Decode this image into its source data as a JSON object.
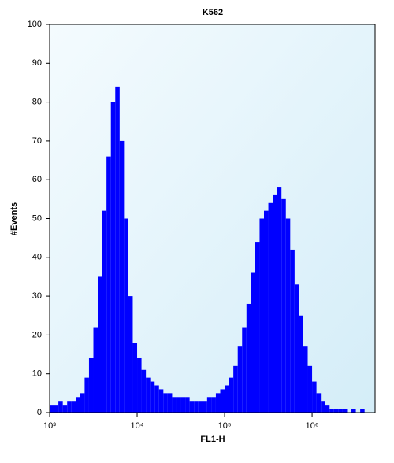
{
  "chart_data": {
    "type": "histogram",
    "title": "K562",
    "x_label": "FL1-H",
    "y_label": "#Events",
    "color": "#0000ff",
    "x_log": true,
    "xlim": [
      1000,
      5248000
    ],
    "xticks": [
      {
        "value": 1000,
        "label": "10³"
      },
      {
        "value": 10000,
        "label": "10⁴"
      },
      {
        "value": 100000,
        "label": "10⁵"
      },
      {
        "value": 1000000,
        "label": "10⁶"
      }
    ],
    "ylim": [
      0,
      100
    ],
    "yticks": [
      0,
      10,
      20,
      30,
      40,
      50,
      60,
      70,
      80,
      90,
      100
    ],
    "bins": [
      1000,
      1122,
      1259,
      1413,
      1585,
      1778,
      1995,
      2239,
      2512,
      2818,
      3162,
      3548,
      3981,
      4467,
      5012,
      5623,
      6310,
      7079,
      7943,
      8913,
      10000,
      11220,
      12590,
      14130,
      15850,
      17780,
      19950,
      22390,
      25120,
      28180,
      31620,
      35480,
      39810,
      44670,
      50120,
      56230,
      63100,
      70790,
      79430,
      89130,
      100000,
      112200,
      125900,
      141300,
      158500,
      177800,
      199500,
      223900,
      251200,
      281800,
      316200,
      354800,
      398100,
      446700,
      501200,
      562300,
      631000,
      707900,
      794300,
      891300,
      1000000,
      1122000,
      1259000,
      1413000,
      1585000,
      1778000,
      1995000,
      2239000,
      2512000,
      2818000,
      3162000,
      3548000,
      3981000,
      4467000,
      5012000
    ],
    "values": [
      2,
      2,
      3,
      2,
      3,
      3,
      4,
      5,
      9,
      14,
      22,
      35,
      52,
      66,
      80,
      84,
      70,
      50,
      30,
      18,
      14,
      11,
      9,
      8,
      7,
      6,
      5,
      5,
      4,
      4,
      4,
      4,
      3,
      3,
      3,
      3,
      4,
      4,
      5,
      6,
      7,
      9,
      12,
      17,
      22,
      28,
      36,
      44,
      50,
      52,
      54,
      56,
      58,
      55,
      50,
      42,
      33,
      25,
      17,
      12,
      8,
      5,
      3,
      2,
      1,
      1,
      1,
      1,
      0,
      1,
      0,
      1,
      0,
      0
    ]
  }
}
